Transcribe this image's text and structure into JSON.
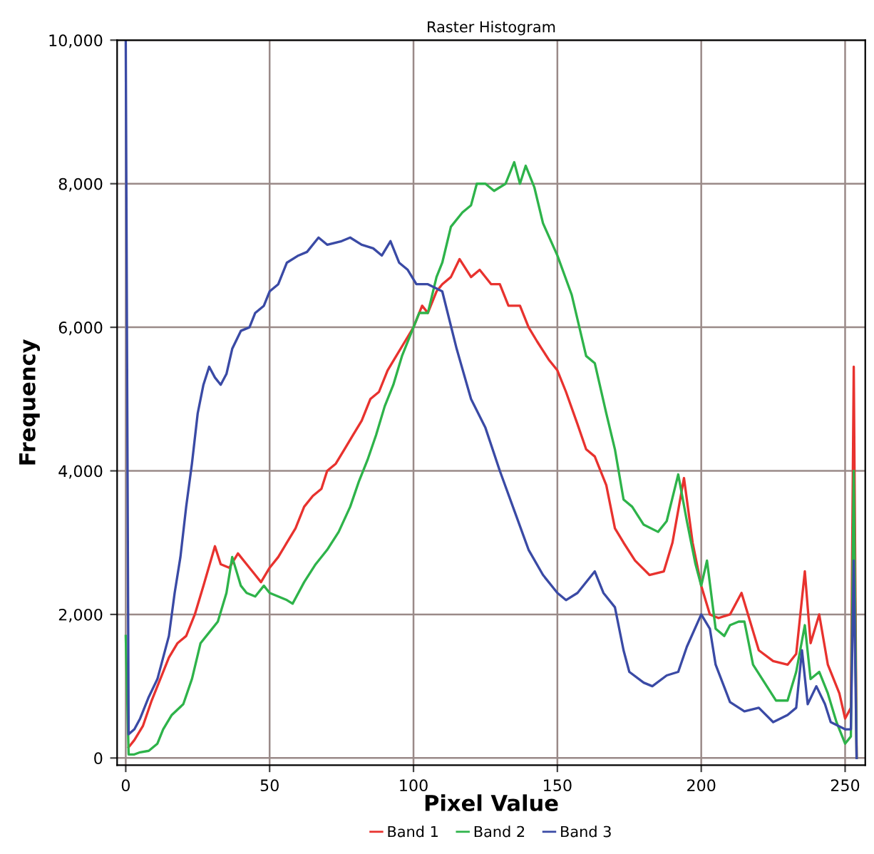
{
  "chart_data": {
    "type": "line",
    "title": "Raster Histogram",
    "xlabel": "Pixel Value",
    "ylabel": "Frequency",
    "xlim": [
      -3,
      257
    ],
    "xticks": [
      0,
      50,
      100,
      150,
      200,
      250
    ],
    "ylim": [
      -100,
      10000
    ],
    "yticks": [
      {
        "value": 0,
        "label": "0"
      },
      {
        "value": 2000,
        "label": "2,000"
      },
      {
        "value": 4000,
        "label": "4,000"
      },
      {
        "value": 6000,
        "label": "6,000"
      },
      {
        "value": 8000,
        "label": "8,000"
      },
      {
        "value": 10000,
        "label": "10,000"
      }
    ],
    "grid": true,
    "legend": "bottom",
    "marker": "none",
    "line_style": "solid",
    "series": [
      {
        "name": "Band 1",
        "color": "#e8322e",
        "x": [
          1,
          3,
          6,
          9,
          12,
          15,
          18,
          21,
          24,
          27,
          31,
          33,
          36,
          39,
          42,
          45,
          47,
          50,
          53,
          56,
          59,
          62,
          65,
          68,
          70,
          73,
          76,
          79,
          82,
          85,
          88,
          91,
          94,
          97,
          100,
          103,
          105,
          108,
          110,
          113,
          116,
          120,
          123,
          127,
          130,
          133,
          137,
          140,
          143,
          147,
          150,
          153,
          157,
          160,
          163,
          167,
          170,
          173,
          177,
          182,
          187,
          190,
          194,
          197,
          200,
          203,
          206,
          210,
          214,
          217,
          220,
          225,
          230,
          233,
          236,
          238,
          241,
          244,
          248,
          250,
          252,
          253,
          254
        ],
        "values": [
          150,
          250,
          450,
          800,
          1100,
          1400,
          1600,
          1700,
          2000,
          2400,
          2950,
          2700,
          2650,
          2850,
          2700,
          2550,
          2450,
          2650,
          2800,
          3000,
          3200,
          3500,
          3650,
          3750,
          4000,
          4100,
          4300,
          4500,
          4700,
          5000,
          5100,
          5400,
          5600,
          5800,
          6000,
          6300,
          6200,
          6500,
          6600,
          6700,
          6950,
          6700,
          6800,
          6600,
          6600,
          6300,
          6300,
          6000,
          5800,
          5550,
          5400,
          5100,
          4650,
          4300,
          4200,
          3800,
          3200,
          3000,
          2750,
          2550,
          2600,
          3000,
          3900,
          3000,
          2400,
          2000,
          1950,
          2000,
          2300,
          1900,
          1500,
          1350,
          1300,
          1450,
          2600,
          1600,
          2000,
          1300,
          900,
          550,
          700,
          5450,
          0
        ]
      },
      {
        "name": "Band 2",
        "color": "#2eb34a",
        "x": [
          0,
          1,
          3,
          5,
          8,
          11,
          13,
          16,
          20,
          23,
          26,
          29,
          32,
          35,
          37,
          40,
          42,
          45,
          48,
          50,
          53,
          56,
          58,
          62,
          66,
          70,
          74,
          78,
          81,
          84,
          87,
          90,
          93,
          96,
          99,
          102,
          105,
          108,
          110,
          113,
          117,
          120,
          122,
          125,
          128,
          132,
          135,
          137,
          139,
          142,
          145,
          150,
          155,
          160,
          163,
          167,
          170,
          173,
          176,
          180,
          185,
          188,
          192,
          195,
          198,
          200,
          202,
          205,
          208,
          210,
          213,
          215,
          218,
          222,
          226,
          230,
          233,
          236,
          238,
          241,
          244,
          247,
          250,
          252,
          253,
          254
        ],
        "values": [
          1700,
          50,
          50,
          80,
          100,
          200,
          400,
          600,
          750,
          1100,
          1600,
          1750,
          1900,
          2300,
          2800,
          2400,
          2300,
          2250,
          2400,
          2300,
          2250,
          2200,
          2150,
          2450,
          2700,
          2900,
          3150,
          3500,
          3850,
          4150,
          4500,
          4900,
          5200,
          5600,
          5900,
          6200,
          6200,
          6700,
          6900,
          7400,
          7600,
          7700,
          8000,
          8000,
          7900,
          8000,
          8300,
          8000,
          8250,
          7950,
          7450,
          7000,
          6450,
          5600,
          5500,
          4800,
          4300,
          3600,
          3500,
          3250,
          3150,
          3300,
          3950,
          3300,
          2700,
          2400,
          2750,
          1800,
          1700,
          1850,
          1900,
          1900,
          1300,
          1050,
          800,
          800,
          1200,
          1850,
          1100,
          1200,
          900,
          500,
          200,
          300,
          4000,
          0
        ]
      },
      {
        "name": "Band 3",
        "color": "#3a4aa5",
        "x": [
          0,
          1,
          3,
          5,
          8,
          11,
          13,
          15,
          17,
          19,
          21,
          23,
          25,
          27,
          29,
          31,
          33,
          35,
          37,
          40,
          43,
          45,
          48,
          50,
          53,
          56,
          60,
          63,
          67,
          70,
          75,
          78,
          82,
          86,
          89,
          92,
          95,
          98,
          101,
          105,
          110,
          115,
          120,
          125,
          130,
          135,
          140,
          145,
          150,
          153,
          157,
          163,
          166,
          170,
          173,
          175,
          180,
          183,
          188,
          192,
          195,
          200,
          203,
          205,
          210,
          215,
          220,
          225,
          230,
          233,
          235,
          237,
          240,
          243,
          245,
          250,
          252,
          253,
          254
        ],
        "values": [
          10000,
          330,
          400,
          550,
          850,
          1100,
          1400,
          1700,
          2300,
          2800,
          3500,
          4100,
          4800,
          5200,
          5450,
          5300,
          5200,
          5350,
          5700,
          5950,
          6000,
          6200,
          6300,
          6500,
          6600,
          6900,
          7000,
          7050,
          7250,
          7150,
          7200,
          7250,
          7150,
          7100,
          7000,
          7200,
          6900,
          6800,
          6600,
          6600,
          6500,
          5700,
          5000,
          4600,
          4000,
          3450,
          2900,
          2550,
          2300,
          2200,
          2300,
          2600,
          2300,
          2100,
          1500,
          1200,
          1050,
          1000,
          1150,
          1200,
          1550,
          2000,
          1800,
          1300,
          780,
          650,
          700,
          500,
          600,
          700,
          1500,
          750,
          1000,
          750,
          500,
          400,
          400,
          2750,
          0
        ]
      }
    ]
  }
}
